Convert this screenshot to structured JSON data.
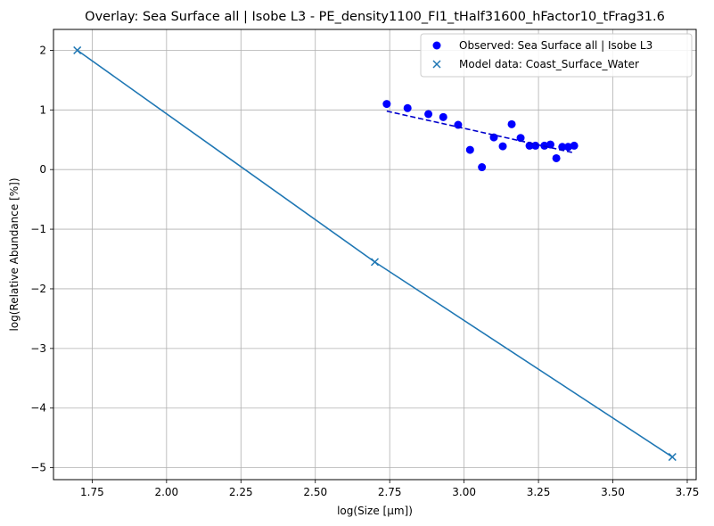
{
  "chart_data": {
    "type": "scatter",
    "title": "Overlay: Sea Surface all | Isobe L3 - PE_density1100_FI1_tHalf31600_hFactor10_tFrag31.6",
    "xlabel": "log(Size [µm])",
    "ylabel": "log(Relative Abundance [%])",
    "xlim": [
      1.62,
      3.78
    ],
    "ylim": [
      -5.2,
      2.35
    ],
    "grid": true,
    "legend_position": "top-right",
    "x_ticks": [
      1.75,
      2.0,
      2.25,
      2.5,
      2.75,
      3.0,
      3.25,
      3.5,
      3.75
    ],
    "x_tick_labels": [
      "1.75",
      "2.00",
      "2.25",
      "2.50",
      "2.75",
      "3.00",
      "3.25",
      "3.50",
      "3.75"
    ],
    "y_ticks": [
      2,
      1,
      0,
      -1,
      -2,
      -3,
      -4,
      -5
    ],
    "y_tick_labels": [
      "2",
      "1",
      "0",
      "−1",
      "−2",
      "−3",
      "−4",
      "−5"
    ],
    "series": [
      {
        "name": "Observed: Sea Surface all | Isobe L3",
        "kind": "scatter-dots",
        "color": "#0000ff",
        "points": [
          [
            2.74,
            1.1
          ],
          [
            2.81,
            1.03
          ],
          [
            2.88,
            0.93
          ],
          [
            2.93,
            0.88
          ],
          [
            2.98,
            0.75
          ],
          [
            3.02,
            0.33
          ],
          [
            3.06,
            0.04
          ],
          [
            3.1,
            0.54
          ],
          [
            3.13,
            0.39
          ],
          [
            3.16,
            0.76
          ],
          [
            3.19,
            0.53
          ],
          [
            3.22,
            0.4
          ],
          [
            3.24,
            0.4
          ],
          [
            3.27,
            0.4
          ],
          [
            3.29,
            0.42
          ],
          [
            3.31,
            0.19
          ],
          [
            3.33,
            0.38
          ],
          [
            3.35,
            0.38
          ],
          [
            3.37,
            0.4
          ]
        ]
      },
      {
        "name": "Observed fit",
        "kind": "dashed-line",
        "color": "#0000cc",
        "points": [
          [
            2.74,
            0.98
          ],
          [
            3.37,
            0.28
          ]
        ]
      },
      {
        "name": "Model data: Coast_Surface_Water",
        "kind": "x-markers-line",
        "color": "#1f77b4",
        "points": [
          [
            1.7,
            2.0
          ],
          [
            2.7,
            -1.55
          ],
          [
            3.7,
            -4.82
          ]
        ]
      }
    ]
  }
}
